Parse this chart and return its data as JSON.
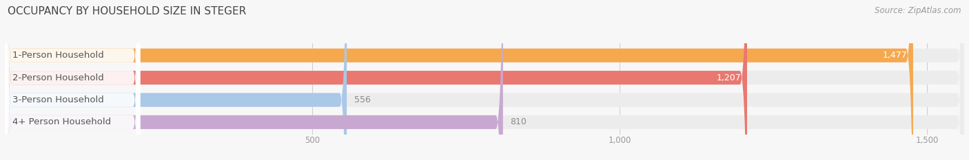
{
  "title": "OCCUPANCY BY HOUSEHOLD SIZE IN STEGER",
  "source": "Source: ZipAtlas.com",
  "categories": [
    "1-Person Household",
    "2-Person Household",
    "3-Person Household",
    "4+ Person Household"
  ],
  "values": [
    1477,
    1207,
    556,
    810
  ],
  "bar_colors": [
    "#f5a84e",
    "#e87870",
    "#aac8e8",
    "#c8a8d0"
  ],
  "bar_label_colors": [
    "white",
    "white",
    "#888888",
    "#888888"
  ],
  "label_inside": [
    true,
    true,
    false,
    false
  ],
  "xlim": [
    0,
    1560
  ],
  "xticks": [
    500,
    1000,
    1500
  ],
  "xtick_labels": [
    "500",
    "1,000",
    "1,500"
  ],
  "background_color": "#f7f7f7",
  "bar_height": 0.62,
  "bar_gap": 1.0,
  "title_fontsize": 11,
  "label_fontsize": 9.5,
  "value_fontsize": 9,
  "source_fontsize": 8.5,
  "bar_bg_color": "#ececec",
  "rounding_size": 12
}
